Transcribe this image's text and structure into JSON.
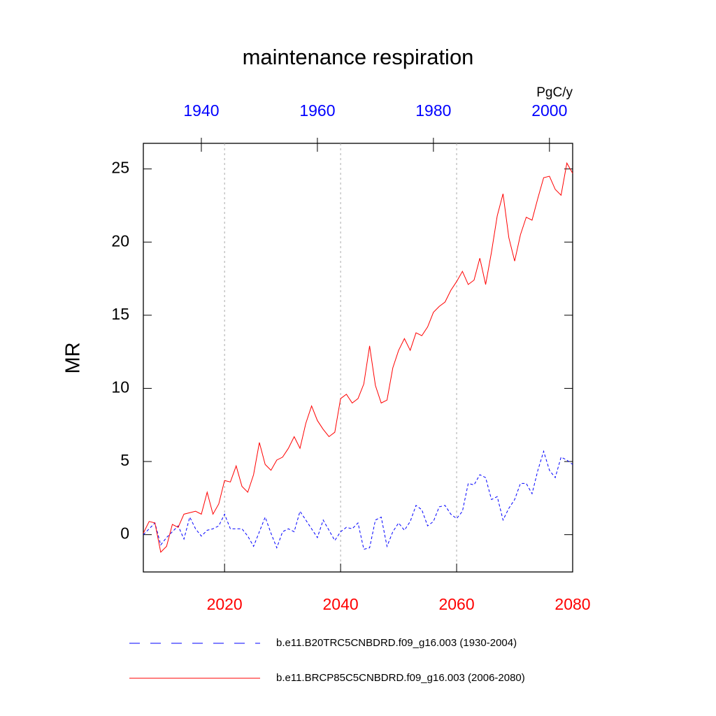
{
  "chart_data": {
    "type": "line",
    "title": "maintenance respiration",
    "ylabel": "MR",
    "units": "PgC/y",
    "xlim": [
      2006,
      2080
    ],
    "xticks": [
      2020,
      2040,
      2060,
      2080
    ],
    "xtick_color": "#ff0000",
    "x2lim": [
      1930,
      2004
    ],
    "x2ticks": [
      1940,
      1960,
      1980,
      2000
    ],
    "x2tick_color": "#0000ff",
    "ylim": [
      -2.55,
      26.75
    ],
    "yticks": [
      0,
      5,
      10,
      15,
      20,
      25
    ],
    "grid": true,
    "series": [
      {
        "name": "b.e11.B20TRC5CNBDRD.f09_g16.003 (1930-2004)",
        "color": "#0000ff",
        "dashed": true,
        "axis": "x2",
        "x": [
          1930,
          1931,
          1932,
          1933,
          1934,
          1935,
          1936,
          1937,
          1938,
          1939,
          1940,
          1941,
          1942,
          1943,
          1944,
          1945,
          1946,
          1947,
          1948,
          1949,
          1950,
          1951,
          1952,
          1953,
          1954,
          1955,
          1956,
          1957,
          1958,
          1959,
          1960,
          1961,
          1962,
          1963,
          1964,
          1965,
          1966,
          1967,
          1968,
          1969,
          1970,
          1971,
          1972,
          1973,
          1974,
          1975,
          1976,
          1977,
          1978,
          1979,
          1980,
          1981,
          1982,
          1983,
          1984,
          1985,
          1986,
          1987,
          1988,
          1989,
          1990,
          1991,
          1992,
          1993,
          1994,
          1995,
          1996,
          1997,
          1998,
          1999,
          2000,
          2001,
          2002,
          2003,
          2004
        ],
        "values": [
          0.0,
          0.4,
          0.8,
          -0.7,
          -0.2,
          0.2,
          0.6,
          -0.3,
          1.2,
          0.4,
          -0.1,
          0.3,
          0.4,
          0.6,
          1.4,
          0.4,
          0.4,
          0.4,
          -0.1,
          -0.8,
          0.2,
          1.2,
          0.1,
          -0.9,
          0.2,
          0.4,
          0.2,
          1.6,
          1.0,
          0.4,
          -0.2,
          1.0,
          0.3,
          -0.4,
          0.2,
          0.5,
          0.4,
          0.8,
          -1.0,
          -0.9,
          1.0,
          1.2,
          -0.8,
          0.2,
          0.8,
          0.3,
          0.9,
          2.0,
          1.7,
          0.6,
          0.9,
          1.9,
          2.0,
          1.4,
          1.1,
          1.6,
          3.5,
          3.4,
          4.1,
          3.9,
          2.4,
          2.6,
          1.0,
          1.8,
          2.4,
          3.5,
          3.5,
          2.8,
          4.4,
          5.7,
          4.4,
          3.9,
          5.3,
          5.1,
          4.8
        ]
      },
      {
        "name": "b.e11.BRCP85C5CNBDRD.f09_g16.003 (2006-2080)",
        "color": "#ff0000",
        "dashed": false,
        "x": [
          2006,
          2007,
          2008,
          2009,
          2010,
          2011,
          2012,
          2013,
          2014,
          2015,
          2016,
          2017,
          2018,
          2019,
          2020,
          2021,
          2022,
          2023,
          2024,
          2025,
          2026,
          2027,
          2028,
          2029,
          2030,
          2031,
          2032,
          2033,
          2034,
          2035,
          2036,
          2037,
          2038,
          2039,
          2040,
          2041,
          2042,
          2043,
          2044,
          2045,
          2046,
          2047,
          2048,
          2049,
          2050,
          2051,
          2052,
          2053,
          2054,
          2055,
          2056,
          2057,
          2058,
          2059,
          2060,
          2061,
          2062,
          2063,
          2064,
          2065,
          2066,
          2067,
          2068,
          2069,
          2070,
          2071,
          2072,
          2073,
          2074,
          2075,
          2076,
          2077,
          2078,
          2079,
          2080
        ],
        "values": [
          0.1,
          0.9,
          0.8,
          -1.2,
          -0.8,
          0.7,
          0.5,
          1.4,
          1.5,
          1.6,
          1.4,
          2.9,
          1.4,
          2.1,
          3.7,
          3.6,
          4.7,
          3.3,
          2.9,
          4.1,
          6.3,
          4.8,
          4.4,
          5.1,
          5.3,
          5.9,
          6.7,
          5.9,
          7.6,
          8.8,
          7.8,
          7.2,
          6.7,
          7.0,
          9.3,
          9.6,
          9.0,
          9.3,
          10.3,
          12.9,
          10.2,
          9.0,
          9.2,
          11.4,
          12.6,
          13.4,
          12.6,
          13.8,
          13.6,
          14.2,
          15.2,
          15.6,
          15.9,
          16.7,
          17.3,
          18.0,
          17.1,
          17.4,
          18.9,
          17.1,
          19.3,
          21.8,
          23.3,
          20.3,
          18.7,
          20.5,
          21.7,
          21.5,
          23.0,
          24.4,
          24.5,
          23.6,
          23.2,
          25.4,
          24.7
        ]
      }
    ]
  }
}
